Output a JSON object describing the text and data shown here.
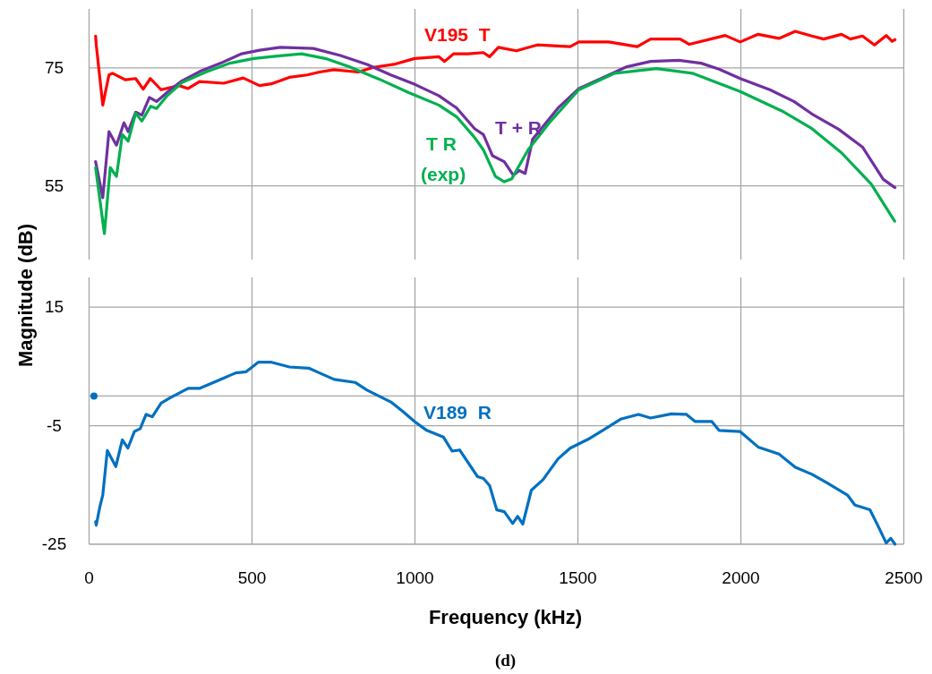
{
  "chart_data": [
    {
      "type": "line",
      "xlim": [
        0,
        2500
      ],
      "xticks": [
        0,
        500,
        1000,
        1500,
        2000,
        2500
      ],
      "ylim": [
        42.5,
        85
      ],
      "yticks": [
        55,
        75
      ],
      "grid": true,
      "tick_labels": "y",
      "line_style": "solid",
      "series": [
        {
          "name": "V195  T",
          "color": "#ff0000",
          "x": [
            20,
            22,
            42,
            61,
            72,
            111,
            143,
            166,
            188,
            221,
            276,
            304,
            339,
            413,
            473,
            523,
            559,
            614,
            669,
            707,
            751,
            826,
            872,
            935,
            999,
            1073,
            1091,
            1119,
            1163,
            1210,
            1229,
            1256,
            1311,
            1375,
            1476,
            1503,
            1595,
            1682,
            1723,
            1814,
            1842,
            1952,
            1998,
            2053,
            2117,
            2167,
            2218,
            2254,
            2309,
            2336,
            2373,
            2410,
            2446,
            2464,
            2473
          ],
          "values": [
            80.4,
            78.9,
            68.7,
            73.8,
            74.1,
            73.0,
            73.2,
            71.4,
            73.2,
            71.3,
            72.0,
            71.5,
            72.7,
            72.4,
            73.3,
            72.0,
            72.3,
            73.4,
            73.8,
            74.3,
            74.7,
            74.3,
            75.1,
            75.6,
            76.6,
            76.9,
            76.1,
            77.4,
            77.4,
            77.6,
            76.9,
            78.5,
            77.9,
            78.9,
            78.6,
            79.4,
            79.4,
            78.6,
            79.9,
            79.9,
            79.0,
            80.5,
            79.4,
            80.7,
            80.0,
            81.2,
            80.4,
            79.9,
            80.7,
            79.9,
            80.4,
            78.9,
            80.5,
            79.5,
            79.8
          ]
        },
        {
          "name": "T + R",
          "color": "#7030a0",
          "x": [
            20,
            42,
            61,
            84,
            107,
            120,
            143,
            162,
            185,
            207,
            249,
            285,
            340,
            404,
            468,
            523,
            587,
            688,
            771,
            853,
            926,
            1000,
            1073,
            1128,
            1183,
            1210,
            1238,
            1274,
            1302,
            1320,
            1338,
            1361,
            1439,
            1503,
            1595,
            1650,
            1723,
            1810,
            1878,
            1933,
            1998,
            2089,
            2163,
            2218,
            2300,
            2373,
            2437,
            2473
          ],
          "values": [
            59.1,
            53.0,
            64.2,
            61.9,
            65.7,
            64.2,
            67.5,
            67.0,
            70.0,
            69.3,
            71.3,
            72.8,
            74.4,
            75.8,
            77.4,
            78.0,
            78.5,
            78.3,
            77.1,
            75.6,
            73.8,
            72.2,
            70.3,
            68.2,
            64.7,
            63.7,
            60.1,
            59.1,
            56.8,
            57.6,
            57.1,
            62.9,
            68.2,
            71.5,
            73.8,
            75.2,
            76.1,
            76.3,
            75.8,
            74.8,
            73.2,
            71.3,
            69.3,
            67.2,
            64.6,
            61.6,
            56.1,
            54.7
          ]
        },
        {
          "name": "T R (exp)",
          "color": "#00b050",
          "x": [
            20,
            47,
            65,
            84,
            102,
            120,
            143,
            162,
            189,
            207,
            240,
            285,
            358,
            432,
            505,
            578,
            652,
            725,
            798,
            890,
            981,
            1073,
            1128,
            1183,
            1210,
            1247,
            1274,
            1297,
            1347,
            1412,
            1503,
            1613,
            1741,
            1851,
            1998,
            2126,
            2218,
            2309,
            2400,
            2472
          ],
          "values": [
            58.1,
            46.9,
            58.1,
            56.6,
            63.7,
            62.6,
            67.3,
            66.0,
            68.5,
            68.1,
            70.3,
            72.5,
            74.3,
            75.8,
            76.6,
            77.0,
            77.4,
            76.6,
            75.2,
            73.1,
            70.8,
            68.7,
            66.7,
            63.2,
            61.1,
            56.6,
            55.7,
            56.2,
            61.1,
            65.7,
            71.3,
            74.1,
            74.9,
            74.1,
            71.0,
            67.7,
            64.7,
            60.6,
            55.3,
            49.0
          ]
        }
      ]
    },
    {
      "type": "line",
      "xlabel": "Frequency (kHz)",
      "ylabel": "Magnitude (dB)",
      "annotations": [
        "(d)"
      ],
      "xlim": [
        0,
        2500
      ],
      "xticks": [
        0,
        500,
        1000,
        1500,
        2000,
        2500
      ],
      "ylim": [
        -25,
        20
      ],
      "yticks": [
        15,
        -5,
        -25
      ],
      "grid": true,
      "line_style": "solid",
      "ref_lines": [
        {
          "axis": "y",
          "value": 0,
          "color": "#a6a6a6"
        }
      ],
      "series": [
        {
          "name": "V189  R",
          "color": "#0070c0",
          "x": [
            20,
            22,
            33,
            42,
            56,
            82,
            102,
            119,
            139,
            157,
            175,
            194,
            221,
            249,
            304,
            340,
            395,
            450,
            482,
            519,
            560,
            615,
            674,
            707,
            752,
            816,
            853,
            926,
            963,
            999,
            1036,
            1087,
            1114,
            1137,
            1192,
            1210,
            1229,
            1251,
            1274,
            1300,
            1315,
            1331,
            1357,
            1393,
            1439,
            1476,
            1531,
            1576,
            1631,
            1686,
            1723,
            1787,
            1833,
            1860,
            1911,
            1933,
            1998,
            2053,
            2117,
            2167,
            2218,
            2263,
            2327,
            2350,
            2396,
            2419,
            2446,
            2460,
            2473
          ],
          "values": [
            -21.2,
            -21.8,
            -18.7,
            -16.7,
            -9.2,
            -11.9,
            -7.4,
            -8.8,
            -6.0,
            -5.5,
            -3.1,
            -3.5,
            -1.2,
            -0.3,
            1.3,
            1.3,
            2.6,
            3.9,
            4.1,
            5.7,
            5.7,
            4.9,
            4.7,
            3.9,
            2.8,
            2.3,
            1.0,
            -1.0,
            -2.6,
            -4.3,
            -5.8,
            -6.9,
            -9.3,
            -9.1,
            -13.6,
            -13.9,
            -15.1,
            -19.2,
            -19.5,
            -21.5,
            -20.3,
            -21.6,
            -15.9,
            -14.1,
            -10.6,
            -8.8,
            -7.3,
            -5.8,
            -3.9,
            -3.1,
            -3.7,
            -3.0,
            -3.1,
            -4.3,
            -4.3,
            -5.8,
            -6.0,
            -8.6,
            -9.8,
            -12.0,
            -13.2,
            -14.6,
            -16.7,
            -18.4,
            -19.2,
            -21.7,
            -24.8,
            -24.0,
            -25.0
          ]
        },
        {
          "type": "scatter",
          "color": "#0070c0",
          "marker": "circle",
          "x": [
            15
          ],
          "values": [
            0
          ]
        }
      ]
    }
  ]
}
